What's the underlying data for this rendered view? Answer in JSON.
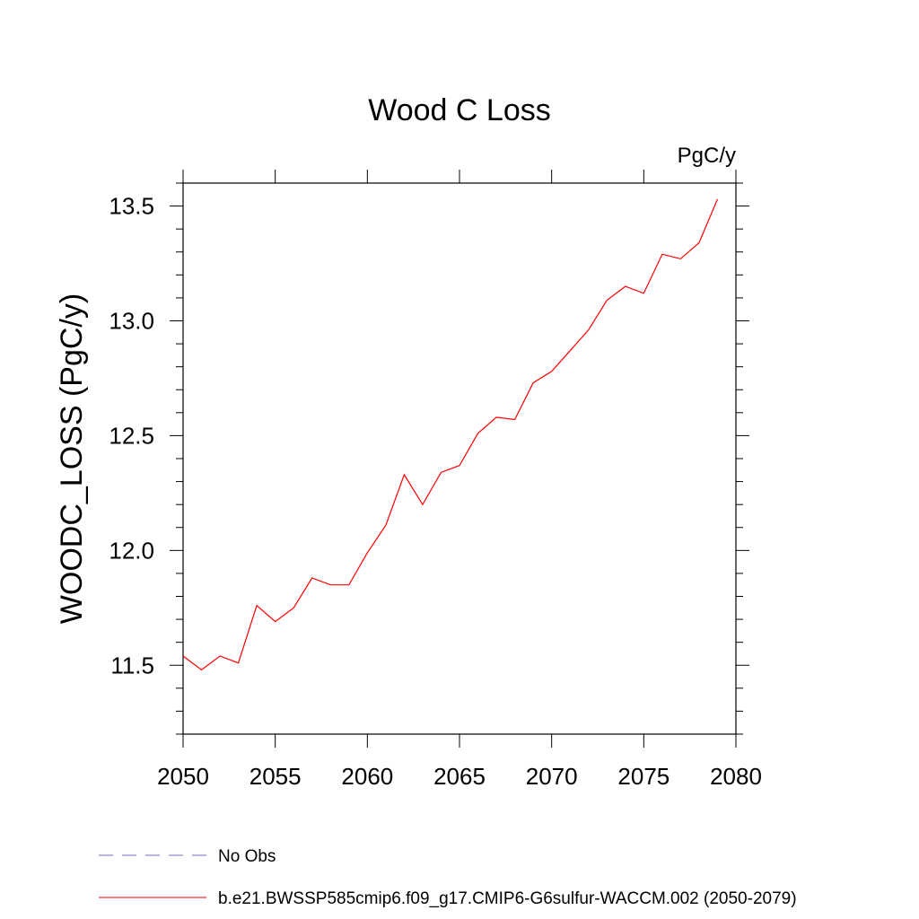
{
  "chart_data": {
    "type": "line",
    "title": "Wood C Loss",
    "units_label": "PgC/y",
    "ylabel": "WOODC_LOSS  (PgC/y)",
    "xlabel": "",
    "xlim": [
      2050,
      2080
    ],
    "ylim": [
      11.2,
      13.6
    ],
    "xticks": [
      2050,
      2055,
      2060,
      2065,
      2070,
      2075,
      2080
    ],
    "xtick_labels": [
      "2050",
      "2055",
      "2060",
      "2065",
      "2070",
      "2075",
      "2080"
    ],
    "yticks": [
      11.5,
      12.0,
      12.5,
      13.0,
      13.5
    ],
    "ytick_labels": [
      "11.5",
      "12.0",
      "12.5",
      "13.0",
      "13.5"
    ],
    "grid": false,
    "legend_position": "bottom",
    "series": [
      {
        "name": "b.e21.BWSSP585cmip6.f09_g17.CMIP6-G6sulfur-WACCM.002 (2050-2079)",
        "color": "#ff0000",
        "style": "solid",
        "x": [
          2050,
          2051,
          2052,
          2053,
          2054,
          2055,
          2056,
          2057,
          2058,
          2059,
          2060,
          2061,
          2062,
          2063,
          2064,
          2065,
          2066,
          2067,
          2068,
          2069,
          2070,
          2071,
          2072,
          2073,
          2074,
          2075,
          2076,
          2077,
          2078,
          2079
        ],
        "y": [
          11.54,
          11.48,
          11.54,
          11.51,
          11.76,
          11.69,
          11.75,
          11.88,
          11.85,
          11.85,
          11.99,
          12.11,
          12.33,
          12.2,
          12.34,
          12.37,
          12.51,
          12.58,
          12.57,
          12.73,
          12.78,
          12.87,
          12.96,
          13.09,
          13.15,
          13.12,
          13.29,
          13.27,
          13.34,
          13.53
        ]
      }
    ],
    "legend": [
      {
        "label": "No Obs",
        "color": "#7a6fc0",
        "style": "dashed"
      },
      {
        "label": "b.e21.BWSSP585cmip6.f09_g17.CMIP6-G6sulfur-WACCM.002 (2050-2079)",
        "color": "#ff0000",
        "style": "solid"
      }
    ]
  }
}
